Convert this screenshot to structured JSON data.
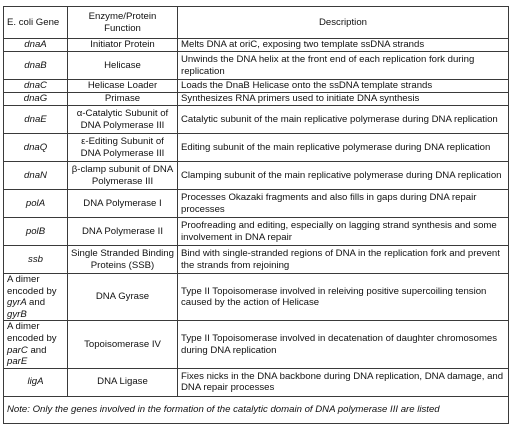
{
  "table": {
    "headers": {
      "gene": "E. coli Gene",
      "enzyme": "Enzyme/Protein Function",
      "description": "Description"
    },
    "rows": [
      {
        "gene": "dnaA",
        "enzyme": "Initiator Protein",
        "description": "Melts DNA at oriC, exposing two template ssDNA strands"
      },
      {
        "gene": "dnaB",
        "enzyme": "Helicase",
        "description": "Unwinds the DNA helix at the front end of each replication fork during replication"
      },
      {
        "gene": "dnaC",
        "enzyme": "Helicase Loader",
        "description": "Loads the DnaB Helicase onto the ssDNA template strands"
      },
      {
        "gene": "dnaG",
        "enzyme": "Primase",
        "description": "Synthesizes RNA primers used to initiate DNA synthesis"
      },
      {
        "gene": "dnaE",
        "enzyme": "α-Catalytic Subunit of DNA Polymerase III",
        "description": "Catalytic subunit of the main replicative polymerase during DNA replication"
      },
      {
        "gene": "dnaQ",
        "enzyme": "ε-Editing Subunit of DNA Polymerase III",
        "description": "Editing subunit of the main replicative polymerase during DNA replication"
      },
      {
        "gene": "dnaN",
        "enzyme": "β-clamp subunit of DNA Polymerase III",
        "description": "Clamping subunit of the main replicative polymerase during DNA replication"
      },
      {
        "gene": "polA",
        "enzyme": "DNA Polymerase I",
        "description": "Processes Okazaki fragments and also fills in gaps during DNA repair processes"
      },
      {
        "gene": "polB",
        "enzyme": "DNA Polymerase II",
        "description": "Proofreading and editing, especially on lagging strand synthesis and some involvement in DNA repair"
      },
      {
        "gene": "ssb",
        "enzyme": "Single Stranded Binding Proteins (SSB)",
        "description": "Bind with single-stranded regions of DNA in the replication fork and prevent the strands from rejoining"
      },
      {
        "gene_prefix": "A dimer encoded by",
        "gene_a": "gyrA",
        "gene_and": "and",
        "gene_b": "gyrB",
        "enzyme": "DNA Gyrase",
        "description": "Type II Topoisomerase involved in releiving positive supercoiling tension caused by the action of Helicase"
      },
      {
        "gene_prefix": "A dimer encoded by",
        "gene_a": "parC",
        "gene_and": "and",
        "gene_b": "parE",
        "enzyme": "Topoisomerase IV",
        "description": "Type II Topoisomerase involved in decatenation of daughter chromosomes during DNA replication"
      },
      {
        "gene": "ligA",
        "enzyme": "DNA Ligase",
        "description": "Fixes nicks in the DNA backbone during DNA replication, DNA damage, and DNA repair processes"
      }
    ],
    "note": "Note: Only the genes involved in the formation of the catalytic domain of DNA polymerase III are listed"
  }
}
